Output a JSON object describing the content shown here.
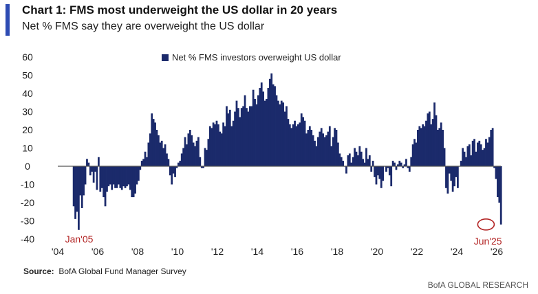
{
  "header": {
    "title": "Chart 1: FMS most underweight the US dollar in 20 years",
    "subtitle": "Net % FMS say they are overweight the US dollar"
  },
  "footer": {
    "source_label": "Source:",
    "source_text": "BofA Global Fund Manager Survey",
    "brand": "BofA GLOBAL RESEARCH"
  },
  "colors": {
    "bar": "#1b2a6b",
    "annotation": "#b22222",
    "accent": "#2d4bb3"
  },
  "chart_data": {
    "type": "bar",
    "legend": {
      "label": "Net % FMS investors overweight US dollar",
      "position": "top-center"
    },
    "ylim": [
      -40,
      60
    ],
    "yticks": [
      60,
      50,
      40,
      30,
      20,
      10,
      0,
      -10,
      -20,
      -30,
      -40
    ],
    "xlim": [
      2004,
      2026
    ],
    "xticks": [
      {
        "value": 2004,
        "label": "'04"
      },
      {
        "value": 2006,
        "label": "'06"
      },
      {
        "value": 2008,
        "label": "'08"
      },
      {
        "value": 2010,
        "label": "'10"
      },
      {
        "value": 2012,
        "label": "'12"
      },
      {
        "value": 2014,
        "label": "'14"
      },
      {
        "value": 2016,
        "label": "'16"
      },
      {
        "value": 2018,
        "label": "'18"
      },
      {
        "value": 2020,
        "label": "'20"
      },
      {
        "value": 2022,
        "label": "'22"
      },
      {
        "value": 2024,
        "label": "'24"
      },
      {
        "value": 2026,
        "label": "'26"
      }
    ],
    "annotations": [
      {
        "label": "Jan'05",
        "x": 2005.0,
        "y": -40
      },
      {
        "label": "Jun'25",
        "x": 2025.42,
        "y": -32,
        "circle": true
      }
    ],
    "start": "2004-10",
    "values": [
      -22,
      -29,
      -25,
      -35,
      -16,
      -23,
      -16,
      -10,
      4,
      2,
      -5,
      -3,
      -9,
      -3,
      -13,
      5,
      -14,
      -12,
      -17,
      -22,
      -14,
      -11,
      -10,
      -13,
      -10,
      -12,
      -12,
      -10,
      -12,
      -13,
      -11,
      -12,
      -11,
      -10,
      -13,
      -17,
      -17,
      -15,
      -10,
      -8,
      -2,
      3,
      4,
      8,
      5,
      13,
      18,
      29,
      26,
      24,
      20,
      17,
      13,
      14,
      10,
      12,
      7,
      4,
      -5,
      -10,
      -4,
      -6,
      -1,
      2,
      3,
      7,
      10,
      16,
      12,
      18,
      20,
      17,
      13,
      11,
      14,
      16,
      5,
      -1,
      -1,
      10,
      9,
      15,
      22,
      21,
      24,
      23,
      25,
      23,
      19,
      18,
      24,
      22,
      33,
      29,
      31,
      22,
      25,
      30,
      36,
      32,
      27,
      32,
      33,
      39,
      32,
      30,
      33,
      33,
      42,
      37,
      34,
      39,
      43,
      46,
      41,
      36,
      37,
      43,
      48,
      51,
      45,
      44,
      39,
      36,
      34,
      36,
      35,
      30,
      33,
      26,
      23,
      21,
      23,
      25,
      22,
      23,
      24,
      29,
      27,
      25,
      18,
      20,
      22,
      20,
      17,
      14,
      11,
      16,
      19,
      21,
      18,
      16,
      17,
      19,
      22,
      11,
      16,
      21,
      20,
      13,
      7,
      5,
      3,
      0,
      -4,
      6,
      7,
      2,
      5,
      10,
      8,
      6,
      11,
      8,
      4,
      2,
      10,
      4,
      6,
      -3,
      3,
      -6,
      -10,
      -5,
      -7,
      -12,
      -8,
      0,
      -3,
      -1,
      -5,
      -11,
      3,
      2,
      -2,
      1,
      3,
      2,
      -1,
      1,
      4,
      -1,
      -3,
      5,
      12,
      15,
      13,
      20,
      22,
      21,
      23,
      22,
      25,
      29,
      30,
      23,
      26,
      35,
      28,
      20,
      21,
      24,
      20,
      10,
      -12,
      -15,
      -4,
      -8,
      -14,
      -11,
      -6,
      -12,
      0,
      3,
      10,
      8,
      5,
      11,
      12,
      6,
      14,
      15,
      8,
      13,
      14,
      12,
      9,
      10,
      15,
      13,
      16,
      20,
      21,
      -1,
      -7,
      -17,
      -20,
      -32
    ]
  }
}
